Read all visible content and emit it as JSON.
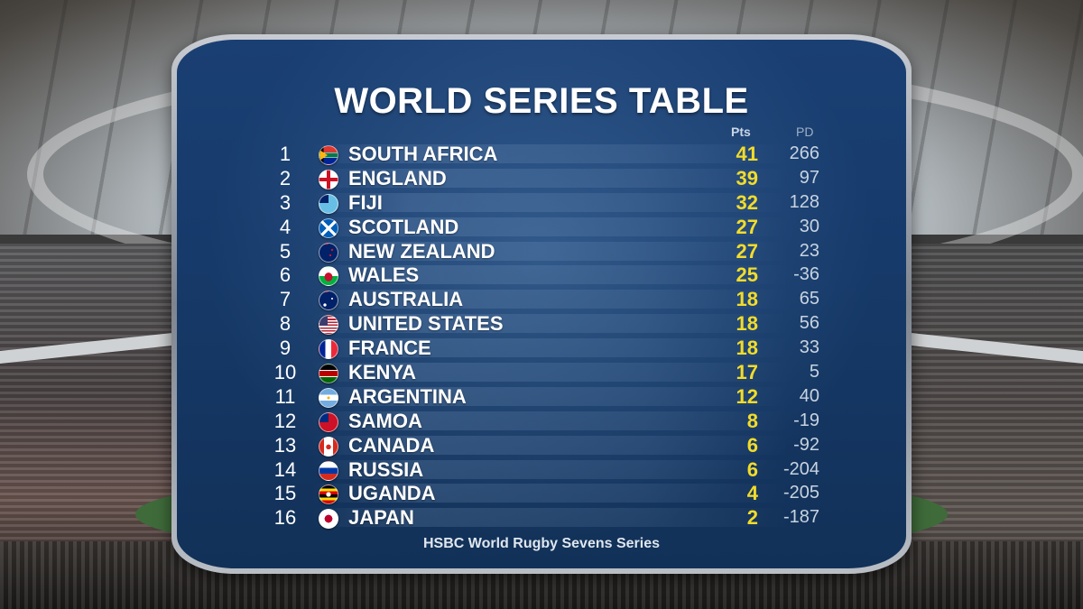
{
  "title": "WORLD SERIES TABLE",
  "columns": {
    "points": "Pts",
    "point_difference": "PD"
  },
  "rows": [
    {
      "rank": "1",
      "team": "SOUTH AFRICA",
      "flag": "south-africa-flag",
      "pts": "41",
      "pd": "266"
    },
    {
      "rank": "2",
      "team": "ENGLAND",
      "flag": "england-flag",
      "pts": "39",
      "pd": "97"
    },
    {
      "rank": "3",
      "team": "FIJI",
      "flag": "fiji-flag",
      "pts": "32",
      "pd": "128"
    },
    {
      "rank": "4",
      "team": "SCOTLAND",
      "flag": "scotland-flag",
      "pts": "27",
      "pd": "30"
    },
    {
      "rank": "5",
      "team": "NEW ZEALAND",
      "flag": "new-zealand-flag",
      "pts": "27",
      "pd": "23"
    },
    {
      "rank": "6",
      "team": "WALES",
      "flag": "wales-flag",
      "pts": "25",
      "pd": "-36"
    },
    {
      "rank": "7",
      "team": "AUSTRALIA",
      "flag": "australia-flag",
      "pts": "18",
      "pd": "65"
    },
    {
      "rank": "8",
      "team": "UNITED STATES",
      "flag": "united-states-flag",
      "pts": "18",
      "pd": "56"
    },
    {
      "rank": "9",
      "team": "FRANCE",
      "flag": "france-flag",
      "pts": "18",
      "pd": "33"
    },
    {
      "rank": "10",
      "team": "KENYA",
      "flag": "kenya-flag",
      "pts": "17",
      "pd": "5"
    },
    {
      "rank": "11",
      "team": "ARGENTINA",
      "flag": "argentina-flag",
      "pts": "12",
      "pd": "40"
    },
    {
      "rank": "12",
      "team": "SAMOA",
      "flag": "samoa-flag",
      "pts": "8",
      "pd": "-19"
    },
    {
      "rank": "13",
      "team": "CANADA",
      "flag": "canada-flag",
      "pts": "6",
      "pd": "-92"
    },
    {
      "rank": "14",
      "team": "RUSSIA",
      "flag": "russia-flag",
      "pts": "6",
      "pd": "-204"
    },
    {
      "rank": "15",
      "team": "UGANDA",
      "flag": "uganda-flag",
      "pts": "4",
      "pd": "-205"
    },
    {
      "rank": "16",
      "team": "JAPAN",
      "flag": "japan-flag",
      "pts": "2",
      "pd": "-187"
    }
  ],
  "footer": "HSBC World Rugby Sevens Series",
  "colors": {
    "panel_blue": "#163a6a",
    "points_yellow": "#f2dc2a",
    "text_white": "#ffffff"
  }
}
